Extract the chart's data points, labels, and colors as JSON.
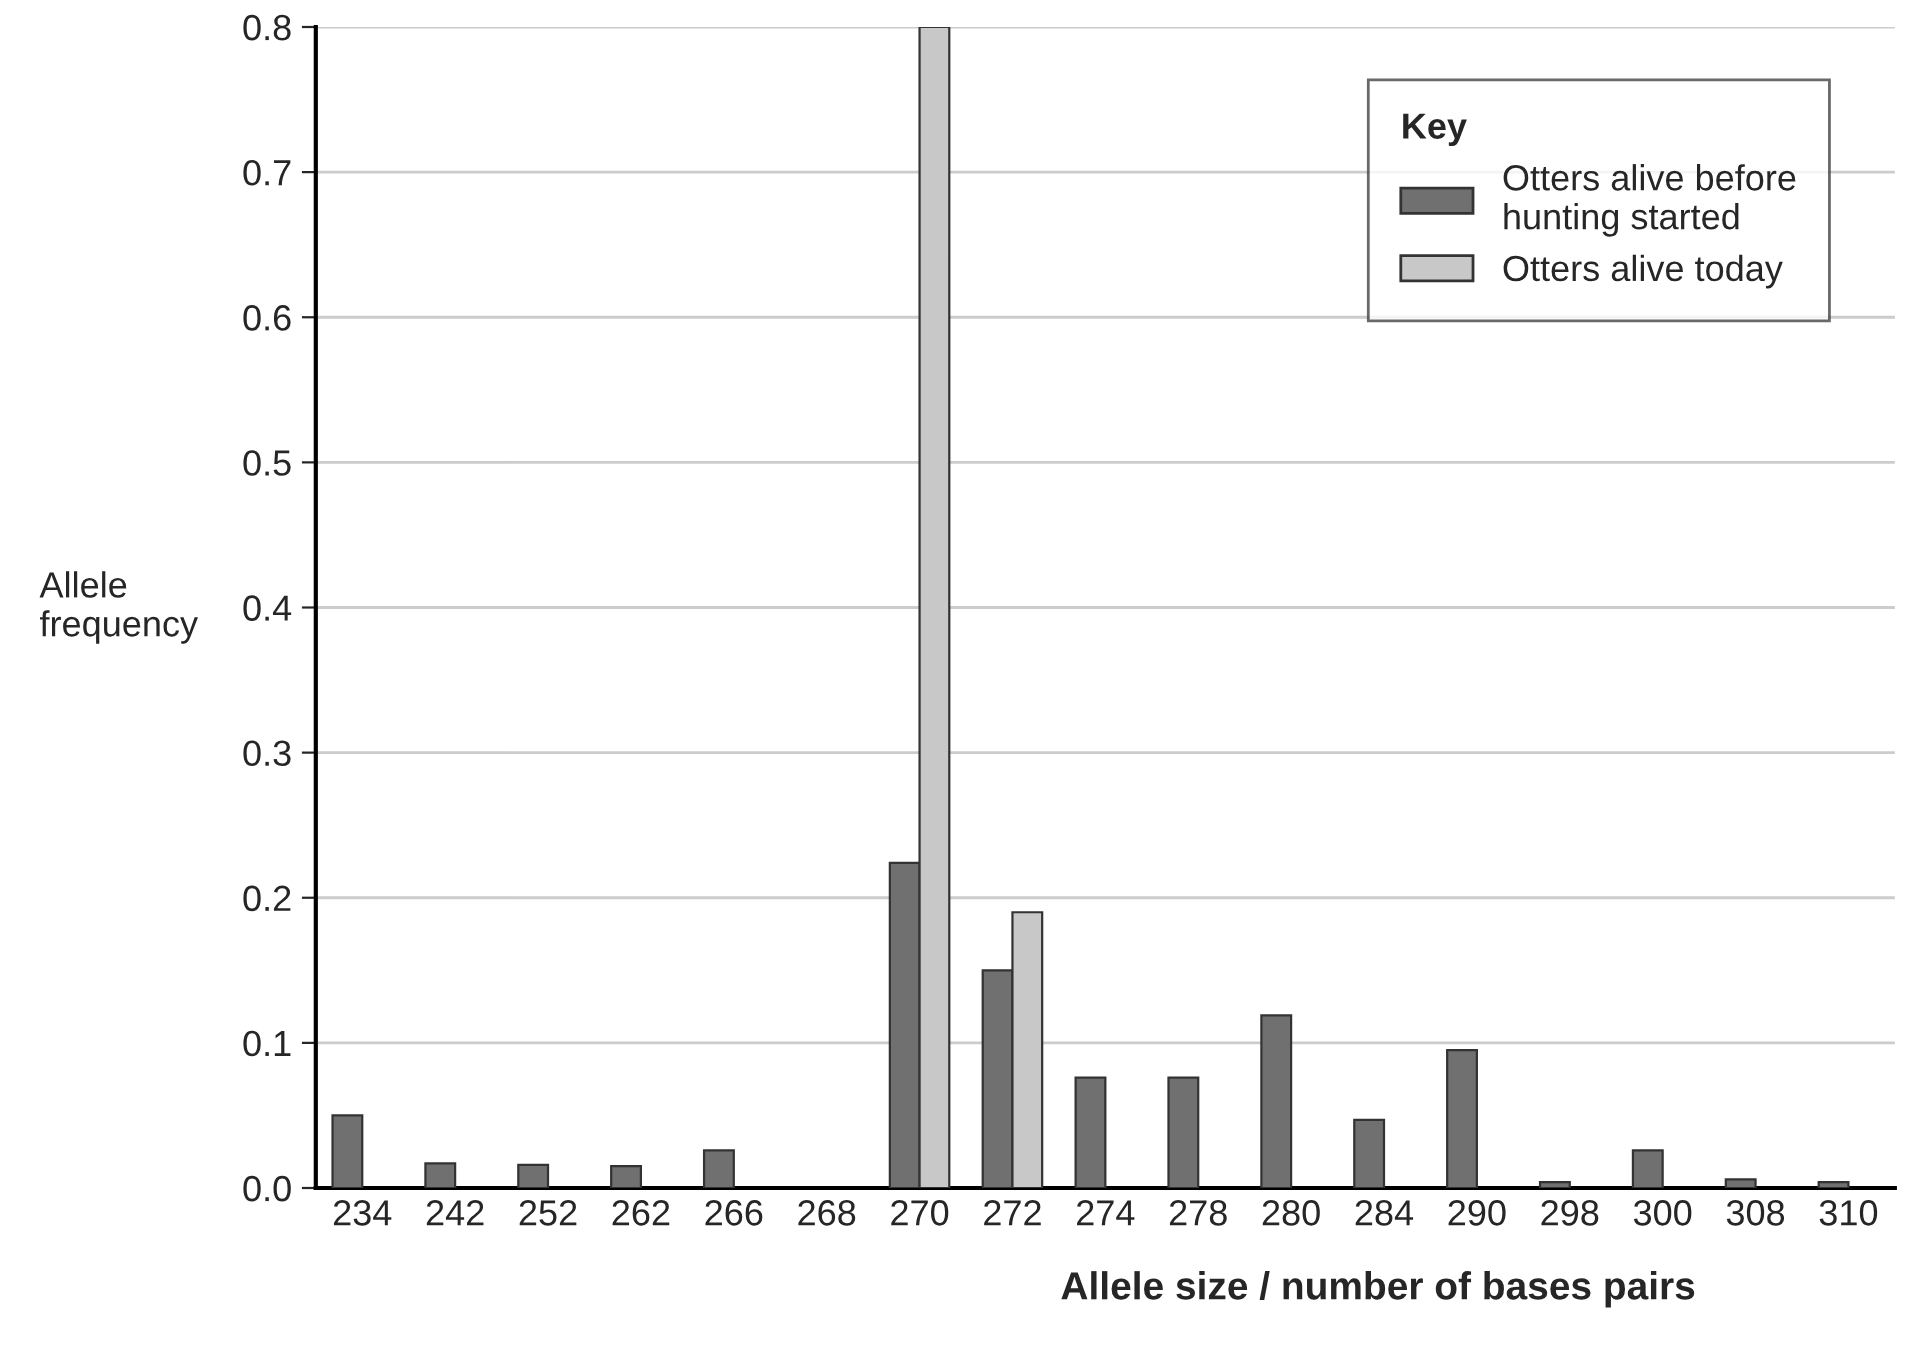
{
  "chart_data": {
    "type": "bar",
    "xlabel": "Allele size / number of bases pairs",
    "ylabel": "Allele\nfrequency",
    "legend_title": "Key",
    "categories": [
      "234",
      "242",
      "252",
      "262",
      "266",
      "268",
      "270",
      "272",
      "274",
      "278",
      "280",
      "284",
      "290",
      "298",
      "300",
      "308",
      "310"
    ],
    "series": [
      {
        "name": "Otters alive before\nhunting started",
        "color": "#707070",
        "values": [
          0.05,
          0.017,
          0.016,
          0.015,
          0.026,
          null,
          0.224,
          0.15,
          0.076,
          0.076,
          0.119,
          0.047,
          0.095,
          0.004,
          0.026,
          0.006,
          0.004
        ]
      },
      {
        "name": "Otters alive today",
        "color": "#c8c8c8",
        "values": [
          null,
          null,
          null,
          null,
          null,
          null,
          0.8,
          0.19,
          null,
          null,
          null,
          null,
          null,
          null,
          null,
          null,
          null
        ]
      }
    ],
    "ylim": [
      0,
      0.8
    ],
    "yticks": [
      {
        "value": 0,
        "label": "0.0"
      },
      0.1,
      0.2,
      0.3,
      0.4,
      0.5,
      0.6,
      0.7,
      0.8
    ],
    "grid": "y",
    "legend": "top right"
  }
}
